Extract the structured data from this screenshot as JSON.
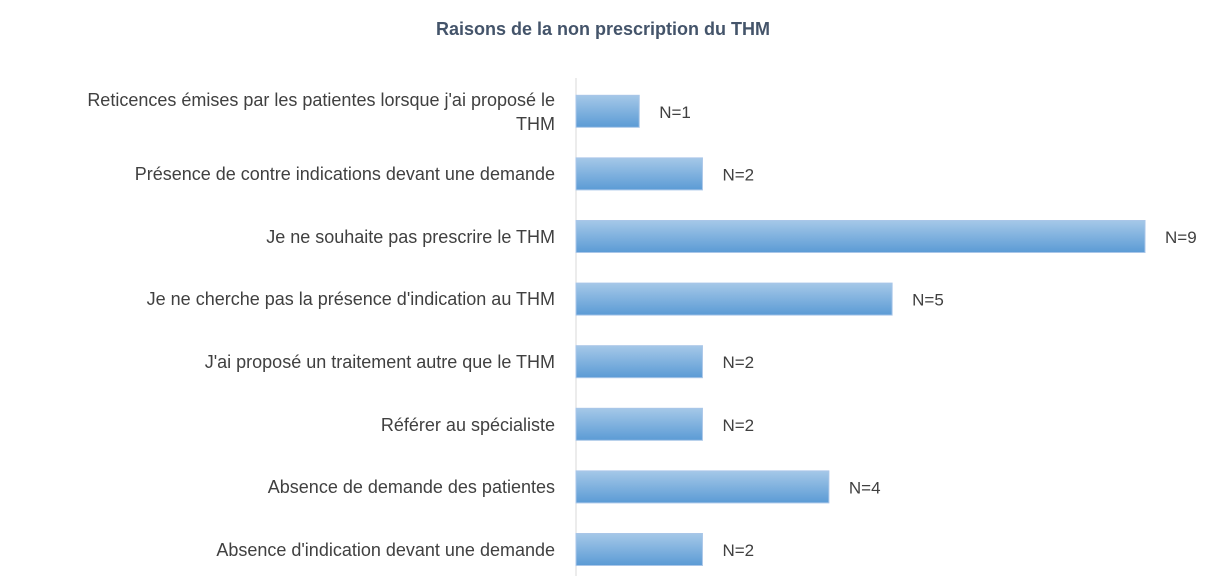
{
  "chart_data": {
    "type": "bar",
    "orientation": "horizontal",
    "title": "Raisons de la non prescription du THM",
    "categories": [
      "Reticences émises par les patientes lorsque j'ai proposé le THM",
      "Présence de contre indications devant une demande",
      "Je ne souhaite pas prescrire le THM",
      "Je ne cherche pas la présence d'indication au THM",
      "J'ai proposé un traitement autre que le THM",
      "Référer au spécialiste",
      "Absence de demande des patientes",
      "Absence d'indication devant une demande"
    ],
    "values": [
      1,
      2,
      9,
      5,
      2,
      2,
      4,
      2
    ],
    "value_labels": [
      "N=1",
      "N=2",
      "N=9",
      "N=5",
      "N=2",
      "N=2",
      "N=4",
      "N=2"
    ],
    "color": "#5b9bd5",
    "xlim": [
      0,
      9
    ]
  }
}
